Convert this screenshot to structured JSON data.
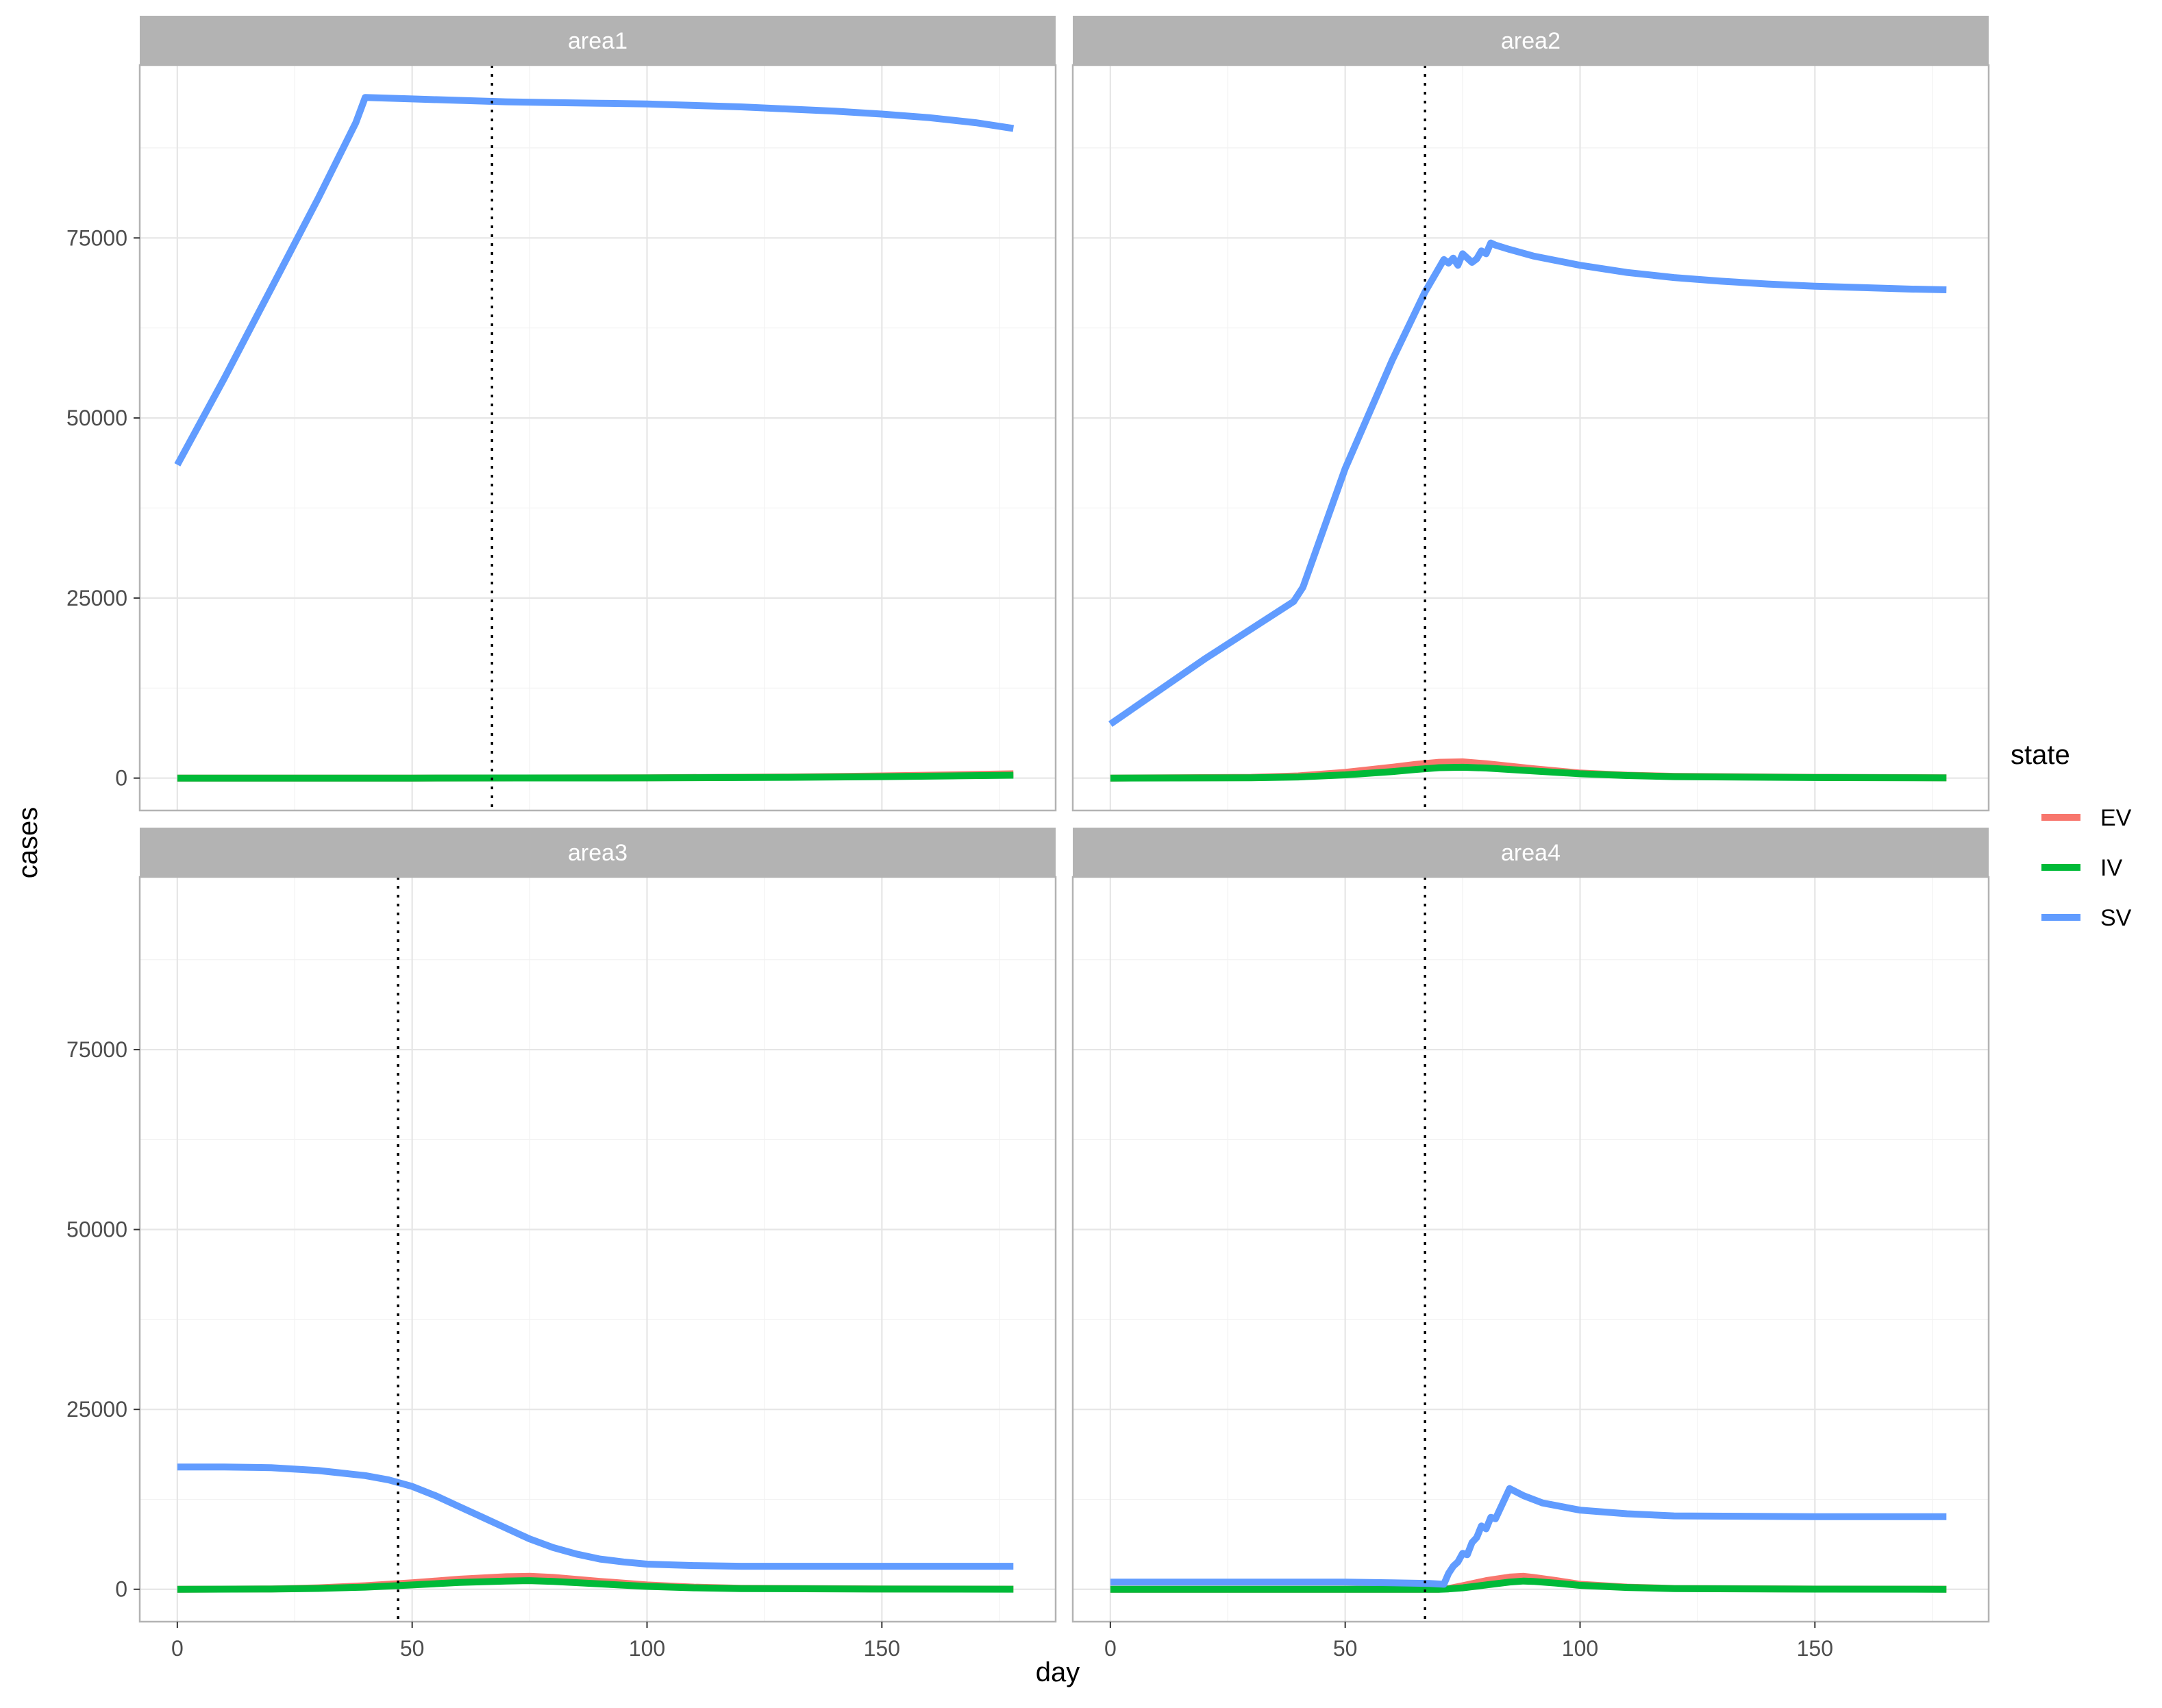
{
  "chart_data": {
    "type": "line",
    "facet_by": "area",
    "xlabel": "day",
    "ylabel": "cases",
    "xlim": [
      -8,
      187
    ],
    "ylim": [
      -4500,
      99000
    ],
    "xticks": [
      0,
      50,
      100,
      150
    ],
    "yticks": [
      0,
      25000,
      50000,
      75000
    ],
    "xtick_labels": [
      "0",
      "50",
      "100",
      "150"
    ],
    "ytick_labels": [
      "0",
      "25000",
      "50000",
      "75000"
    ],
    "grid": true,
    "legend": {
      "title": "state",
      "position": "right",
      "entries": [
        {
          "label": "EV",
          "color": "#F8766D"
        },
        {
          "label": "IV",
          "color": "#00BA38"
        },
        {
          "label": "SV",
          "color": "#619CFF"
        }
      ]
    },
    "panels": [
      {
        "title": "area1",
        "vline_x": 67,
        "series": [
          {
            "name": "EV",
            "color": "#F8766D",
            "x": [
              0,
              50,
              100,
              130,
              150,
              165,
              178
            ],
            "y": [
              0,
              0,
              50,
              150,
              300,
              450,
              600
            ]
          },
          {
            "name": "IV",
            "color": "#00BA38",
            "x": [
              0,
              50,
              100,
              130,
              150,
              165,
              178
            ],
            "y": [
              0,
              0,
              30,
              100,
              200,
              300,
              400
            ]
          },
          {
            "name": "SV",
            "color": "#619CFF",
            "x": [
              0,
              10,
              20,
              30,
              38,
              40,
              50,
              60,
              70,
              80,
              90,
              100,
              110,
              120,
              130,
              140,
              150,
              160,
              170,
              178
            ],
            "y": [
              43500,
              55500,
              68000,
              80500,
              91000,
              94500,
              94300,
              94100,
              93900,
              93800,
              93700,
              93600,
              93400,
              93200,
              92900,
              92600,
              92200,
              91700,
              91000,
              90200
            ]
          }
        ]
      },
      {
        "title": "area2",
        "vline_x": 67,
        "series": [
          {
            "name": "EV",
            "color": "#F8766D",
            "x": [
              0,
              30,
              40,
              50,
              60,
              65,
              70,
              75,
              80,
              90,
              100,
              110,
              120,
              150,
              178
            ],
            "y": [
              0,
              100,
              300,
              800,
              1500,
              1900,
              2200,
              2250,
              2000,
              1300,
              700,
              400,
              250,
              100,
              50
            ]
          },
          {
            "name": "IV",
            "color": "#00BA38",
            "x": [
              0,
              30,
              40,
              50,
              60,
              65,
              70,
              75,
              80,
              90,
              100,
              110,
              120,
              150,
              178
            ],
            "y": [
              0,
              50,
              150,
              450,
              900,
              1200,
              1450,
              1500,
              1400,
              1000,
              600,
              350,
              200,
              80,
              30
            ]
          },
          {
            "name": "SV",
            "color": "#619CFF",
            "x": [
              0,
              20,
              39,
              41,
              50,
              60,
              67,
              71,
              72,
              73,
              74,
              75,
              76,
              77,
              78,
              79,
              80,
              81,
              82,
              85,
              90,
              100,
              110,
              120,
              130,
              140,
              150,
              160,
              170,
              178
            ],
            "y": [
              7500,
              16500,
              24500,
              26500,
              43000,
              58000,
              67500,
              72000,
              71500,
              72200,
              71200,
              72800,
              72200,
              71600,
              72100,
              73200,
              72800,
              74300,
              74000,
              73400,
              72500,
              71200,
              70200,
              69500,
              69000,
              68600,
              68300,
              68100,
              67900,
              67800
            ]
          }
        ]
      },
      {
        "title": "area3",
        "vline_x": 47,
        "series": [
          {
            "name": "EV",
            "color": "#F8766D",
            "x": [
              0,
              20,
              30,
              40,
              50,
              60,
              70,
              75,
              80,
              90,
              100,
              110,
              120,
              150,
              178
            ],
            "y": [
              0,
              50,
              200,
              500,
              900,
              1400,
              1750,
              1800,
              1650,
              1100,
              600,
              300,
              150,
              50,
              20
            ]
          },
          {
            "name": "IV",
            "color": "#00BA38",
            "x": [
              0,
              20,
              30,
              40,
              50,
              60,
              70,
              75,
              80,
              90,
              100,
              110,
              120,
              150,
              178
            ],
            "y": [
              0,
              30,
              120,
              300,
              600,
              950,
              1150,
              1200,
              1100,
              750,
              400,
              200,
              100,
              30,
              10
            ]
          },
          {
            "name": "SV",
            "color": "#619CFF",
            "x": [
              0,
              10,
              20,
              30,
              40,
              45,
              50,
              55,
              60,
              65,
              70,
              75,
              80,
              85,
              90,
              95,
              100,
              110,
              120,
              150,
              178
            ],
            "y": [
              17000,
              17000,
              16900,
              16500,
              15800,
              15200,
              14300,
              13000,
              11500,
              10000,
              8500,
              7000,
              5800,
              4900,
              4200,
              3800,
              3500,
              3300,
              3200,
              3200,
              3200
            ]
          }
        ]
      },
      {
        "title": "area4",
        "vline_x": 67,
        "series": [
          {
            "name": "EV",
            "color": "#F8766D",
            "x": [
              0,
              60,
              70,
              72,
              75,
              80,
              85,
              88,
              90,
              95,
              100,
              110,
              120,
              150,
              178
            ],
            "y": [
              0,
              0,
              0,
              100,
              500,
              1200,
              1700,
              1800,
              1650,
              1200,
              700,
              300,
              120,
              30,
              10
            ]
          },
          {
            "name": "IV",
            "color": "#00BA38",
            "x": [
              0,
              60,
              70,
              72,
              75,
              80,
              85,
              88,
              90,
              95,
              100,
              110,
              120,
              150,
              178
            ],
            "y": [
              0,
              0,
              0,
              50,
              200,
              600,
              1000,
              1150,
              1100,
              850,
              550,
              250,
              100,
              20,
              5
            ]
          },
          {
            "name": "SV",
            "color": "#619CFF",
            "x": [
              0,
              30,
              50,
              60,
              68,
              71,
              72,
              73,
              74,
              75,
              76,
              77,
              78,
              79,
              80,
              81,
              82,
              83,
              84,
              85,
              88,
              92,
              100,
              110,
              120,
              150,
              178
            ],
            "y": [
              1000,
              1000,
              1000,
              900,
              800,
              700,
              2200,
              3200,
              3800,
              5000,
              4800,
              6500,
              7200,
              8800,
              8400,
              10000,
              9800,
              11200,
              12600,
              14000,
              13000,
              12000,
              11000,
              10500,
              10200,
              10100,
              10100
            ]
          }
        ]
      }
    ]
  }
}
